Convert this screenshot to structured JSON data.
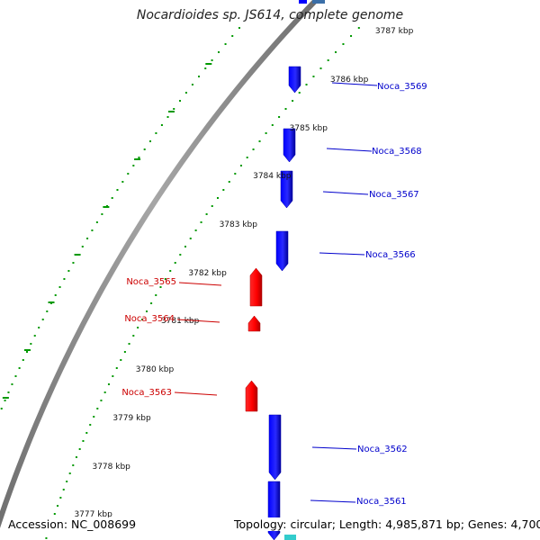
{
  "title": "Nocardioides sp. JS614, complete genome",
  "footer": {
    "accession": "Accession: NC_008699",
    "summary": "Topology: circular; Length: 4,985,871 bp; Genes: 4,700"
  },
  "colors": {
    "forward_gene": "#ff0000",
    "reverse_gene": "#0000ff",
    "label_forward": "#cc0000",
    "label_reverse": "#0000cc",
    "tick_green": "#009900",
    "backbone": "#888888"
  },
  "scale_ticks": [
    {
      "label": "3787 kbp"
    },
    {
      "label": "3786 kbp"
    },
    {
      "label": "3785 kbp"
    },
    {
      "label": "3784 kbp"
    },
    {
      "label": "3783 kbp"
    },
    {
      "label": "3782 kbp"
    },
    {
      "label": "3781 kbp"
    },
    {
      "label": "3780 kbp"
    },
    {
      "label": "3779 kbp"
    },
    {
      "label": "3778 kbp"
    },
    {
      "label": "3777 kbp"
    }
  ],
  "genes": [
    {
      "label": "Noca_3569",
      "strand": "reverse"
    },
    {
      "label": "Noca_3568",
      "strand": "reverse"
    },
    {
      "label": "Noca_3567",
      "strand": "reverse"
    },
    {
      "label": "Noca_3566",
      "strand": "reverse"
    },
    {
      "label": "Noca_3565",
      "strand": "forward"
    },
    {
      "label": "Noca_3564",
      "strand": "forward"
    },
    {
      "label": "Noca_3563",
      "strand": "forward"
    },
    {
      "label": "Noca_3562",
      "strand": "reverse"
    },
    {
      "label": "Noca_3561",
      "strand": "reverse"
    }
  ]
}
